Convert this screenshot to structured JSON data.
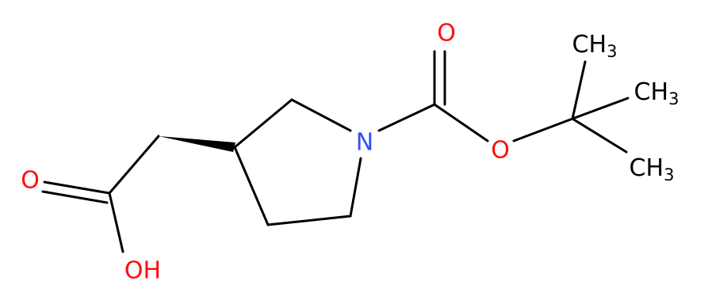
{
  "atoms": [
    {
      "label": "O"
    },
    {
      "label": "OH"
    },
    {
      "label": "N"
    },
    {
      "label": "O"
    },
    {
      "label": "O"
    },
    {
      "label": "CH",
      "sub": "3"
    },
    {
      "label": "CH",
      "sub": "3"
    },
    {
      "label": "CH",
      "sub": "3"
    }
  ]
}
